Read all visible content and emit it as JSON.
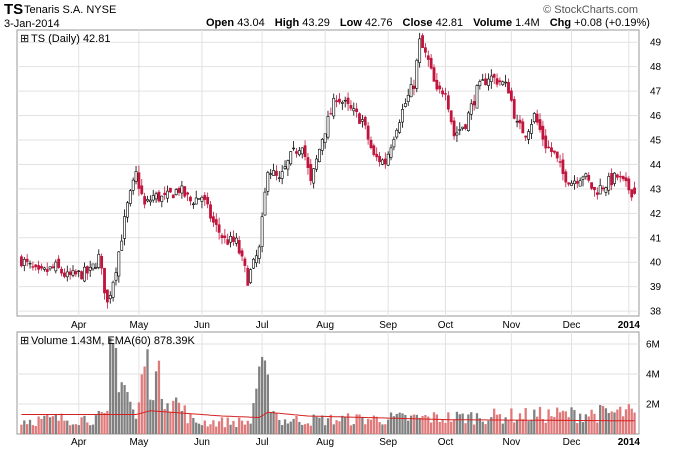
{
  "header": {
    "symbol": "TS",
    "company": "Tenaris S.A. NYSE",
    "watermark": "© StockCharts.com",
    "date": "3-Jan-2014",
    "open_label": "Open",
    "open": "43.04",
    "high_label": "High",
    "high": "43.29",
    "low_label": "Low",
    "low": "42.76",
    "close_label": "Close",
    "close": "42.81",
    "volume_label": "Volume",
    "volume": "1.4M",
    "chg_label": "Chg",
    "chg": "+0.08 (+0.19%)"
  },
  "chart_data": {
    "type": "candlestick",
    "price_legend": "TS (Daily) 42.81",
    "volume_legend": "Volume 1.43M, EMA(60) 878.39K",
    "price_ticks": [
      38,
      39,
      40,
      41,
      42,
      43,
      44,
      45,
      46,
      47,
      48,
      49
    ],
    "price_ylim": [
      37.8,
      49.5
    ],
    "volume_ticks": [
      {
        "v": 2,
        "label": "2M"
      },
      {
        "v": 4,
        "label": "4M"
      },
      {
        "v": 6,
        "label": "6M"
      }
    ],
    "volume_ylim": [
      0,
      6.8
    ],
    "months": [
      {
        "label": "Apr",
        "index": 20
      },
      {
        "label": "May",
        "index": 41
      },
      {
        "label": "Jun",
        "index": 63
      },
      {
        "label": "Jul",
        "index": 84
      },
      {
        "label": "Aug",
        "index": 106
      },
      {
        "label": "Sep",
        "index": 128
      },
      {
        "label": "Oct",
        "index": 148
      },
      {
        "label": "Nov",
        "index": 171
      },
      {
        "label": "Dec",
        "index": 192
      },
      {
        "label": "2014",
        "index": 212,
        "bold": true
      }
    ],
    "close_keys": [
      [
        0,
        40.1
      ],
      [
        6,
        39.5
      ],
      [
        12,
        39.8
      ],
      [
        16,
        39.4
      ],
      [
        20,
        39.5
      ],
      [
        24,
        39.6
      ],
      [
        27,
        40.2
      ],
      [
        30,
        38.3
      ],
      [
        33,
        39.8
      ],
      [
        37,
        42.3
      ],
      [
        40,
        43.6
      ],
      [
        43,
        42.3
      ],
      [
        46,
        42.7
      ],
      [
        50,
        42.6
      ],
      [
        55,
        43.0
      ],
      [
        59,
        42.5
      ],
      [
        63,
        42.7
      ],
      [
        67,
        41.6
      ],
      [
        71,
        40.9
      ],
      [
        75,
        40.8
      ],
      [
        79,
        39.3
      ],
      [
        83,
        40.5
      ],
      [
        86,
        43.9
      ],
      [
        90,
        43.3
      ],
      [
        94,
        44.3
      ],
      [
        98,
        44.9
      ],
      [
        101,
        43.2
      ],
      [
        105,
        45.1
      ],
      [
        110,
        46.8
      ],
      [
        115,
        46.2
      ],
      [
        119,
        45.8
      ],
      [
        123,
        44.3
      ],
      [
        127,
        44.1
      ],
      [
        131,
        45.6
      ],
      [
        134,
        46.5
      ],
      [
        137,
        47.3
      ],
      [
        139,
        49.0
      ],
      [
        142,
        48.2
      ],
      [
        145,
        46.9
      ],
      [
        148,
        47.1
      ],
      [
        151,
        45.2
      ],
      [
        155,
        45.7
      ],
      [
        159,
        47.0
      ],
      [
        163,
        47.6
      ],
      [
        167,
        47.4
      ],
      [
        170,
        47.1
      ],
      [
        173,
        45.6
      ],
      [
        176,
        45.3
      ],
      [
        179,
        46.0
      ],
      [
        183,
        44.8
      ],
      [
        186,
        44.4
      ],
      [
        189,
        43.6
      ],
      [
        192,
        43.3
      ],
      [
        196,
        43.6
      ],
      [
        200,
        42.9
      ],
      [
        204,
        43.2
      ],
      [
        208,
        43.5
      ],
      [
        211,
        43.1
      ],
      [
        214,
        42.81
      ]
    ],
    "volume_keys": [
      [
        0,
        0.9
      ],
      [
        30,
        1.1
      ],
      [
        31,
        6.4
      ],
      [
        40,
        0.9
      ],
      [
        43,
        4.5
      ],
      [
        60,
        0.8
      ],
      [
        80,
        0.8
      ],
      [
        83,
        4.5
      ],
      [
        90,
        0.9
      ],
      [
        150,
        1.1
      ],
      [
        214,
        1.43
      ]
    ],
    "ema60_keys": [
      [
        0,
        1.3
      ],
      [
        40,
        1.3
      ],
      [
        45,
        1.55
      ],
      [
        70,
        1.2
      ],
      [
        83,
        1.1
      ],
      [
        86,
        1.45
      ],
      [
        100,
        1.2
      ],
      [
        150,
        0.95
      ],
      [
        214,
        0.88
      ]
    ],
    "colors": {
      "up": "#000000",
      "down": "#c0143c",
      "vol_up": "#808080",
      "vol_down": "#e07a7a",
      "ema": "#d62020",
      "grid": "#e2e2e2"
    }
  }
}
